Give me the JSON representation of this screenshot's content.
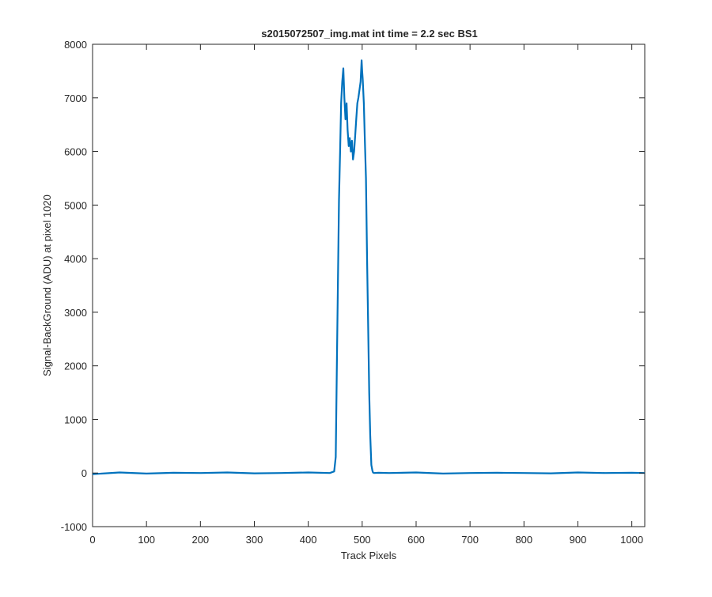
{
  "chart_data": {
    "type": "line",
    "title": "s2015072507_img.mat int time = 2.2 sec   BS1",
    "xlabel": "Track Pixels",
    "ylabel": "Signal-BackGround (ADU) at pixel 1020",
    "xlim": [
      0,
      1024
    ],
    "ylim": [
      -1000,
      8000
    ],
    "xticks": [
      0,
      100,
      200,
      300,
      400,
      500,
      600,
      700,
      800,
      900,
      1000
    ],
    "yticks": [
      -1000,
      0,
      1000,
      2000,
      3000,
      4000,
      5000,
      6000,
      7000,
      8000
    ],
    "xtick_labels": [
      "0",
      "100",
      "200",
      "300",
      "400",
      "500",
      "600",
      "700",
      "800",
      "900",
      "1000"
    ],
    "ytick_labels": [
      "-1000",
      "0",
      "1000",
      "2000",
      "3000",
      "4000",
      "5000",
      "6000",
      "7000",
      "8000"
    ],
    "grid": false,
    "series": [
      {
        "color": "#0072bd",
        "x": [
          0,
          50,
          100,
          150,
          200,
          250,
          300,
          350,
          400,
          440,
          448,
          451,
          453,
          455,
          457,
          459,
          461,
          463,
          465,
          467,
          469,
          471,
          473,
          475,
          477,
          479,
          481,
          483,
          485,
          487,
          489,
          491,
          493,
          495,
          497,
          499,
          500,
          501,
          503,
          505,
          507,
          509,
          511,
          513,
          515,
          517,
          519,
          520,
          522,
          530,
          550,
          600,
          650,
          700,
          750,
          800,
          850,
          900,
          950,
          1000,
          1024
        ],
        "y": [
          -20,
          10,
          -10,
          5,
          0,
          10,
          -5,
          0,
          10,
          0,
          30,
          300,
          2000,
          3500,
          5100,
          6000,
          6900,
          7300,
          7550,
          7000,
          6600,
          6900,
          6400,
          6100,
          6250,
          6000,
          6200,
          5850,
          6000,
          6300,
          6600,
          6900,
          7000,
          7150,
          7300,
          7700,
          7500,
          7350,
          6900,
          6200,
          5500,
          4000,
          2800,
          1500,
          700,
          150,
          40,
          10,
          0,
          5,
          0,
          10,
          -10,
          0,
          5,
          0,
          -5,
          10,
          0,
          5,
          0
        ]
      }
    ]
  }
}
